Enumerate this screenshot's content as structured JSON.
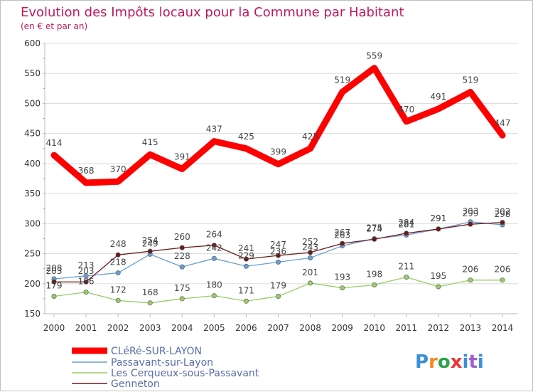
{
  "chart_data": {
    "type": "line",
    "title": "Evolution des Impôts locaux pour la Commune par Habitant",
    "subtitle": "(en € et par an)",
    "x": [
      "2000",
      "2001",
      "2002",
      "2003",
      "2004",
      "2005",
      "2006",
      "2007",
      "2008",
      "2009",
      "2010",
      "2011",
      "2012",
      "2013",
      "2014"
    ],
    "ylim": [
      150,
      600
    ],
    "yticks": [
      150,
      200,
      250,
      300,
      350,
      400,
      450,
      500,
      550,
      600
    ],
    "grid": true,
    "legend_position": "bottom-left",
    "series": [
      {
        "name": "CLéRé-SUR-LAYON",
        "color": "#ff0000",
        "values": [
          414,
          368,
          370,
          415,
          391,
          437,
          425,
          399,
          425,
          519,
          559,
          470,
          491,
          519,
          447
        ]
      },
      {
        "name": "Passavant-sur-Layon",
        "color": "#6a9fd4",
        "values": [
          208,
          213,
          218,
          249,
          228,
          242,
          229,
          236,
          243,
          263,
          275,
          281,
          291,
          303,
          298
        ]
      },
      {
        "name": "Les Cerqueux-sous-Passavant",
        "color": "#99cc66",
        "values": [
          179,
          186,
          172,
          168,
          175,
          180,
          171,
          179,
          201,
          193,
          198,
          211,
          195,
          206,
          206
        ]
      },
      {
        "name": "Genneton",
        "color": "#6b1a1a",
        "values": [
          203,
          203,
          248,
          254,
          260,
          264,
          241,
          247,
          252,
          267,
          274,
          284,
          291,
          299,
          302
        ]
      }
    ]
  },
  "logo": {
    "text": "Proxiti"
  }
}
